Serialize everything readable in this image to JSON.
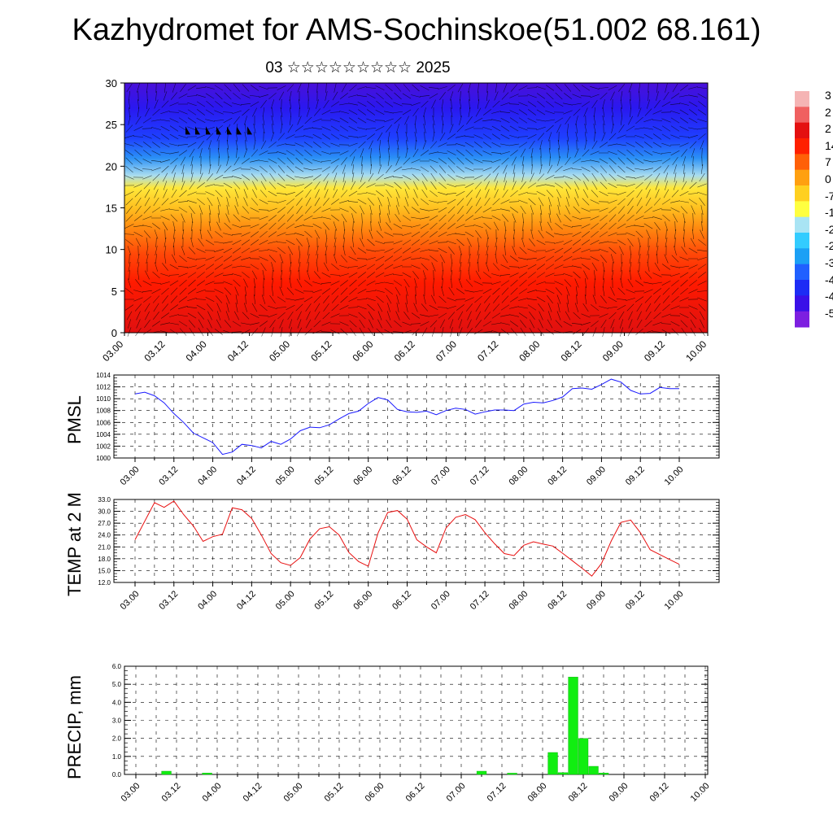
{
  "page": {
    "title": "Kazhydromet for AMS-Sochinskoe(51.002 68.161)",
    "subtitle": "03 ☆☆☆☆☆☆☆☆☆ 2025"
  },
  "colors": {
    "pmsl_line": "#1a1aff",
    "temp_line": "#e81010",
    "precip_bar": "#11ee11",
    "colorbar": [
      "#7d1fe0",
      "#3a10e8",
      "#1d2cf5",
      "#2060ff",
      "#1ba0f5",
      "#33ccff",
      "#a9e4f4",
      "#ffff40",
      "#ffd020",
      "#ffa010",
      "#ff6008",
      "#ff2000",
      "#e41010",
      "#f06060",
      "#f5b4b4"
    ]
  },
  "chart_data": [
    {
      "type": "heatmap",
      "title": "",
      "ylim": [
        0,
        30
      ],
      "yticks": [
        "0",
        "5",
        "10",
        "15",
        "20",
        "25",
        "30"
      ],
      "xticks": [
        "03.00",
        "03.12",
        "04.00",
        "04.12",
        "05.00",
        "05.12",
        "06.00",
        "06.12",
        "07.00",
        "07.12",
        "08.00",
        "08.12",
        "09.00",
        "09.12",
        "10.00"
      ],
      "colorbar_labels": [
        "3",
        "2",
        "2",
        "14",
        "7",
        "0",
        "-7",
        "-1",
        "-2",
        "-2",
        "-3",
        "-4",
        "-4",
        "-5"
      ],
      "note_shapes": "filled temperature field with wind barbs overlaid"
    },
    {
      "type": "line",
      "ylabel": "PMSL",
      "ylim": [
        1000,
        1014
      ],
      "yticks": [
        "1000",
        "1002",
        "1004",
        "1006",
        "1008",
        "1010",
        "1012",
        "1014"
      ],
      "xticks": [
        "03.00",
        "03.12",
        "04.00",
        "04.12",
        "05.00",
        "05.12",
        "06.00",
        "06.12",
        "07.00",
        "07.12",
        "08.00",
        "08.12",
        "09.00",
        "09.12",
        "10.00"
      ],
      "x": [
        0,
        3,
        6,
        9,
        12,
        15,
        18,
        21,
        24,
        27,
        30,
        33,
        36,
        39,
        42,
        45,
        48,
        51,
        54,
        57,
        60,
        63,
        66,
        69,
        72,
        75,
        78,
        81,
        84,
        87,
        90,
        93,
        96,
        99,
        102,
        105,
        108,
        111,
        114,
        117,
        120,
        123,
        126,
        129,
        132,
        135,
        138,
        141,
        144,
        147,
        150,
        153,
        156,
        159,
        162,
        165,
        168
      ],
      "series": [
        {
          "values": [
            1010.8,
            1011.1,
            1010.5,
            1009.3,
            1007.5,
            1006.0,
            1004.2,
            1003.4,
            1002.6,
            1000.6,
            1001.0,
            1002.3,
            1002.1,
            1001.7,
            1002.8,
            1002.3,
            1003.2,
            1004.6,
            1005.2,
            1005.1,
            1005.6,
            1006.6,
            1007.5,
            1007.9,
            1009.2,
            1010.2,
            1009.8,
            1008.2,
            1007.8,
            1007.7,
            1007.9,
            1007.3,
            1008.0,
            1008.4,
            1008.2,
            1007.4,
            1007.8,
            1008.1,
            1008.1,
            1008.0,
            1009.1,
            1009.4,
            1009.3,
            1009.7,
            1010.3,
            1011.7,
            1011.8,
            1011.6,
            1012.4,
            1013.3,
            1012.8,
            1011.4,
            1010.8,
            1010.9,
            1011.9,
            1011.7,
            1011.7
          ]
        }
      ]
    },
    {
      "type": "line",
      "ylabel": "TEMP at 2 M",
      "ylim": [
        12,
        33
      ],
      "yticks": [
        "12.0",
        "15.0",
        "18.0",
        "21.0",
        "24.0",
        "27.0",
        "30.0",
        "33.0"
      ],
      "xticks": [
        "03.00",
        "03.12",
        "04.00",
        "04.12",
        "05.00",
        "05.12",
        "06.00",
        "06.12",
        "07.00",
        "07.12",
        "08.00",
        "08.12",
        "09.00",
        "09.12",
        "10.00"
      ],
      "x": [
        0,
        6,
        9,
        12,
        15,
        18,
        21,
        24,
        27,
        30,
        33,
        36,
        39,
        42,
        45,
        48,
        51,
        54,
        57,
        60,
        63,
        66,
        69,
        72,
        75,
        78,
        81,
        84,
        87,
        90,
        93,
        96,
        99,
        102,
        105,
        108,
        111,
        114,
        117,
        120,
        123,
        126,
        129,
        132,
        135,
        138,
        141,
        144,
        147,
        150,
        153,
        156,
        159,
        165,
        168
      ],
      "series": [
        {
          "values": [
            22.8,
            32.2,
            31.0,
            32.6,
            29.2,
            26.3,
            22.4,
            23.6,
            24.2,
            30.9,
            30.4,
            28.2,
            24.0,
            19.3,
            17.0,
            16.3,
            18.3,
            23.0,
            25.6,
            26.1,
            24.0,
            19.6,
            17.3,
            16.1,
            24.5,
            29.7,
            30.2,
            28.0,
            22.8,
            21.0,
            19.5,
            25.8,
            28.5,
            29.2,
            27.9,
            24.6,
            21.8,
            19.3,
            18.8,
            21.4,
            22.3,
            21.7,
            21.2,
            19.4,
            17.5,
            15.6,
            13.6,
            16.8,
            22.5,
            27.2,
            27.8,
            24.6,
            20.3,
            17.8,
            16.6
          ]
        }
      ]
    },
    {
      "type": "bar",
      "ylabel": "PRECIP, mm",
      "ylim": [
        0,
        6
      ],
      "yticks": [
        "0.0",
        "1.0",
        "2.0",
        "3.0",
        "4.0",
        "5.0",
        "6.0"
      ],
      "xticks": [
        "03.00",
        "03.12",
        "04.00",
        "04.12",
        "05.00",
        "05.12",
        "06.00",
        "06.12",
        "07.00",
        "07.12",
        "08.00",
        "08.12",
        "09.00",
        "09.12",
        "10.00"
      ],
      "x": [
        9,
        21,
        102,
        111,
        123,
        126,
        129,
        132,
        135,
        138
      ],
      "values": [
        0.18,
        0.08,
        0.18,
        0.07,
        1.22,
        0.1,
        5.4,
        2.0,
        0.45,
        0.08
      ]
    }
  ]
}
